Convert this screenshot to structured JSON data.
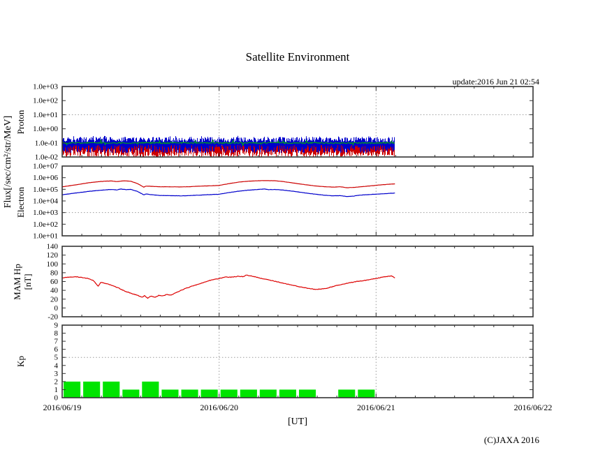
{
  "title": "Satellite Environment",
  "update_text": "update:2016 Jun 21 02:54",
  "copyright": "(C)JAXA 2016",
  "ylabel_shared": "Flux[/sec/cm²/str/MeV]",
  "x_axis": {
    "label": "[UT]",
    "tick_labels": [
      "2016/06/19",
      "2016/06/20",
      "2016/06/21",
      "2016/06/22"
    ],
    "total_hours": 72,
    "minor_tick_hours": 3,
    "data_end_hour": 50.9
  },
  "chart_data": [
    {
      "id": "proton",
      "type": "line",
      "scale": "log10",
      "ylabel": "Proton",
      "range": [
        3,
        -2
      ],
      "threshold_v": 1,
      "ticks": [
        {
          "label": "1.0e+03",
          "v": 3
        },
        {
          "label": "1.0e+02",
          "v": 2
        },
        {
          "label": "1.0e+01",
          "v": 1
        },
        {
          "label": "1.0e+00",
          "v": 0
        },
        {
          "label": "1.0e-01",
          "v": -1
        },
        {
          "label": "1.0e-02",
          "v": -2
        }
      ],
      "description": "Noisy proton flux band between 1.0e-02 and ~3e-01 /sec/cm2/str/MeV; green median near 1.0e-01; data ends 2016/06/21 ~03:00 UT",
      "noise_band": {
        "seed": 20160621,
        "red_color": "#cc0000",
        "blue_color": "#0000cc",
        "green_color": "#00b800",
        "red_top": [
          -1.17,
          -1.02
        ],
        "red_bot": [
          -2.0,
          -1.35
        ],
        "blue_top": [
          -0.95,
          -0.58
        ],
        "blue_bot": [
          -1.72,
          -1.15
        ],
        "green_center": -1.0,
        "green_jitter": 0.1,
        "spike_chance": 0.05,
        "spike_size": 0.13
      }
    },
    {
      "id": "electron",
      "type": "line",
      "scale": "log10",
      "ylabel": "Electron",
      "range": [
        7,
        1
      ],
      "threshold_v": 3,
      "ticks": [
        {
          "label": "1.0e+07",
          "v": 7
        },
        {
          "label": "1.0e+06",
          "v": 6
        },
        {
          "label": "1.0e+05",
          "v": 5
        },
        {
          "label": "1.0e+04",
          "v": 4
        },
        {
          "label": "1.0e+03",
          "v": 3
        },
        {
          "label": "1.0e+02",
          "v": 2
        },
        {
          "label": "1.0e+01",
          "v": 1
        }
      ],
      "series": [
        {
          "name": "electron-flux-high",
          "color": "#cc0000",
          "jitter": 0.015,
          "points": [
            [
              0,
              5.21
            ],
            [
              2,
              5.38
            ],
            [
              4,
              5.56
            ],
            [
              6,
              5.68
            ],
            [
              7.5,
              5.72
            ],
            [
              8.3,
              5.66
            ],
            [
              9.5,
              5.73
            ],
            [
              10.5,
              5.69
            ],
            [
              11.5,
              5.5
            ],
            [
              12.5,
              5.18
            ],
            [
              12.8,
              5.28
            ],
            [
              13.5,
              5.26
            ],
            [
              15,
              5.22
            ],
            [
              16.5,
              5.22
            ],
            [
              18,
              5.2
            ],
            [
              19.5,
              5.23
            ],
            [
              21,
              5.27
            ],
            [
              22.5,
              5.3
            ],
            [
              24,
              5.33
            ],
            [
              25.5,
              5.49
            ],
            [
              27,
              5.62
            ],
            [
              28.5,
              5.7
            ],
            [
              30,
              5.74
            ],
            [
              31,
              5.75
            ],
            [
              32.5,
              5.74
            ],
            [
              34,
              5.65
            ],
            [
              35.5,
              5.53
            ],
            [
              37,
              5.41
            ],
            [
              38.5,
              5.3
            ],
            [
              40,
              5.23
            ],
            [
              41.5,
              5.19
            ],
            [
              42.5,
              5.22
            ],
            [
              43.5,
              5.14
            ],
            [
              44.5,
              5.16
            ],
            [
              45.5,
              5.21
            ],
            [
              47,
              5.29
            ],
            [
              48.5,
              5.37
            ],
            [
              50,
              5.44
            ],
            [
              50.9,
              5.47
            ]
          ]
        },
        {
          "name": "electron-flux-low",
          "color": "#0000cc",
          "jitter": 0.02,
          "points": [
            [
              0,
              4.53
            ],
            [
              2,
              4.68
            ],
            [
              4,
              4.82
            ],
            [
              6,
              4.93
            ],
            [
              7.5,
              4.99
            ],
            [
              8.3,
              4.95
            ],
            [
              9,
              5.02
            ],
            [
              9.8,
              4.97
            ],
            [
              10.5,
              4.99
            ],
            [
              11.5,
              4.82
            ],
            [
              12.5,
              4.52
            ],
            [
              12.8,
              4.6
            ],
            [
              13.5,
              4.55
            ],
            [
              15,
              4.47
            ],
            [
              16.5,
              4.46
            ],
            [
              18,
              4.44
            ],
            [
              19.5,
              4.46
            ],
            [
              21,
              4.5
            ],
            [
              22.5,
              4.54
            ],
            [
              24,
              4.58
            ],
            [
              25.5,
              4.72
            ],
            [
              27,
              4.84
            ],
            [
              28.5,
              4.93
            ],
            [
              30,
              4.99
            ],
            [
              31,
              5.03
            ],
            [
              31.5,
              4.97
            ],
            [
              32.5,
              4.99
            ],
            [
              34,
              4.92
            ],
            [
              35.5,
              4.82
            ],
            [
              37,
              4.7
            ],
            [
              38.5,
              4.59
            ],
            [
              40,
              4.5
            ],
            [
              41.5,
              4.44
            ],
            [
              42.5,
              4.46
            ],
            [
              43.5,
              4.38
            ],
            [
              44.5,
              4.41
            ],
            [
              45.5,
              4.5
            ],
            [
              47,
              4.55
            ],
            [
              48.5,
              4.6
            ],
            [
              50,
              4.65
            ],
            [
              50.9,
              4.68
            ]
          ]
        }
      ]
    },
    {
      "id": "mam",
      "type": "line",
      "scale": "linear",
      "ylabel": "MAM Hp",
      "ylabel_unit": "[nT]",
      "range": [
        140,
        -20
      ],
      "ticks": [
        {
          "label": "140",
          "v": 140
        },
        {
          "label": "120",
          "v": 120
        },
        {
          "label": "100",
          "v": 100
        },
        {
          "label": "80",
          "v": 80
        },
        {
          "label": "60",
          "v": 60
        },
        {
          "label": "40",
          "v": 40
        },
        {
          "label": "20",
          "v": 20
        },
        {
          "label": "0",
          "v": 0
        },
        {
          "label": "-20",
          "v": -20
        }
      ],
      "series": [
        {
          "name": "mam-hp",
          "color": "#dd0000",
          "jitter": 1.2,
          "points": [
            [
              0,
              68
            ],
            [
              1,
              70
            ],
            [
              2,
              71
            ],
            [
              3,
              69
            ],
            [
              4,
              67
            ],
            [
              4.8,
              62
            ],
            [
              5.5,
              49
            ],
            [
              5.9,
              58
            ],
            [
              6.5,
              56
            ],
            [
              7.5,
              52
            ],
            [
              8.5,
              46
            ],
            [
              9.5,
              39
            ],
            [
              10.5,
              33
            ],
            [
              11.5,
              29
            ],
            [
              12.2,
              24
            ],
            [
              12.6,
              28
            ],
            [
              13.1,
              22
            ],
            [
              13.6,
              27
            ],
            [
              14.2,
              24
            ],
            [
              14.8,
              29
            ],
            [
              15.4,
              27
            ],
            [
              16,
              31
            ],
            [
              16.6,
              29
            ],
            [
              17.3,
              34
            ],
            [
              18,
              39
            ],
            [
              19,
              45
            ],
            [
              20,
              50
            ],
            [
              21,
              55
            ],
            [
              22,
              60
            ],
            [
              23,
              64
            ],
            [
              24,
              67
            ],
            [
              25,
              70
            ],
            [
              26,
              70
            ],
            [
              27,
              72
            ],
            [
              27.7,
              71
            ],
            [
              28.2,
              75
            ],
            [
              28.7,
              73
            ],
            [
              29.5,
              71
            ],
            [
              30.5,
              67
            ],
            [
              31.5,
              64
            ],
            [
              33,
              59
            ],
            [
              34.5,
              54
            ],
            [
              36,
              49
            ],
            [
              37.5,
              45
            ],
            [
              38.7,
              42
            ],
            [
              39.5,
              43
            ],
            [
              40.5,
              45
            ],
            [
              42,
              51
            ],
            [
              43.5,
              56
            ],
            [
              45,
              60
            ],
            [
              46.5,
              63
            ],
            [
              48,
              67
            ],
            [
              49,
              70
            ],
            [
              50,
              72
            ],
            [
              50.4,
              73
            ],
            [
              50.9,
              68
            ]
          ]
        }
      ]
    },
    {
      "id": "kp",
      "type": "bar",
      "scale": "linear",
      "ylabel": "Kp",
      "range": [
        9,
        0
      ],
      "threshold_v": 5,
      "bar_color": "#00e400",
      "slot_hours": 3,
      "ticks": [
        {
          "label": "9",
          "v": 9
        },
        {
          "label": "8",
          "v": 8
        },
        {
          "label": "7",
          "v": 7
        },
        {
          "label": "6",
          "v": 6
        },
        {
          "label": "5",
          "v": 5
        },
        {
          "label": "4",
          "v": 4
        },
        {
          "label": "3",
          "v": 3
        },
        {
          "label": "2",
          "v": 2
        },
        {
          "label": "1",
          "v": 1
        },
        {
          "label": "0",
          "v": 0
        }
      ],
      "values": [
        2,
        2,
        2,
        1,
        2,
        1,
        1,
        1,
        1,
        1,
        1,
        1,
        1,
        0,
        1,
        1
      ]
    }
  ]
}
